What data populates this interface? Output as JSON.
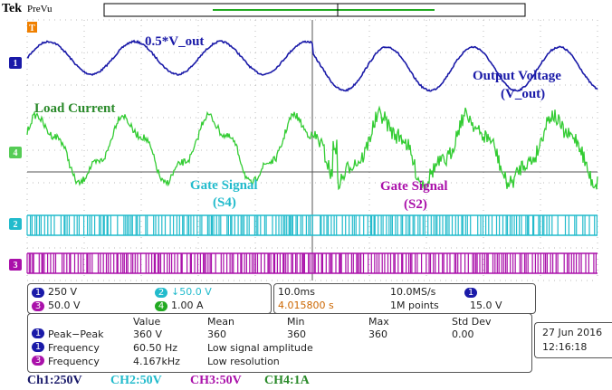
{
  "header": {
    "brand": "Tek",
    "mode": "PreVu"
  },
  "markers": {
    "trigger": "T",
    "ch1": "1",
    "ch4": "4",
    "ch2": "2",
    "ch3": "3"
  },
  "annotations": {
    "ch1": "0.5*V_out",
    "load": "Load Current",
    "gate_s4": [
      "Gate Signal",
      "(S4)"
    ],
    "output": [
      "Output Voltage",
      "(V_out)"
    ],
    "gate_s2": [
      "Gate Signal",
      "(S2)"
    ]
  },
  "readout": {
    "ch1": {
      "num": "1",
      "scale": "250 V"
    },
    "ch3": {
      "num": "3",
      "scale": "50.0 V"
    },
    "ch2": {
      "num": "2",
      "scale": "↓50.0 V"
    },
    "ch4": {
      "num": "4",
      "scale": "1.00 A"
    },
    "timebase": "10.0ms",
    "rate": "10.0MS/s",
    "position": "4.015800 s",
    "points": "1M points",
    "trig_ch": "1",
    "trig_level": "15.0 V"
  },
  "measurements": {
    "headers": [
      "Value",
      "Mean",
      "Min",
      "Max",
      "Std Dev"
    ],
    "rows": [
      {
        "ch": "1",
        "name": "Peak−Peak",
        "cells": [
          "360 V",
          "360",
          "360",
          "360",
          "0.00"
        ]
      },
      {
        "ch": "1",
        "name": "Frequency",
        "cells": [
          "60.50 Hz",
          "Low signal amplitude"
        ]
      },
      {
        "ch": "3",
        "name": "Frequency",
        "cells": [
          "4.167kHz",
          "Low resolution"
        ]
      }
    ]
  },
  "datetime": {
    "date": "27 Jun 2016",
    "time": "12:16:18"
  },
  "footer": [
    "Ch1:250V",
    "CH2:50V",
    "CH3:50V",
    "CH4:1A"
  ]
}
